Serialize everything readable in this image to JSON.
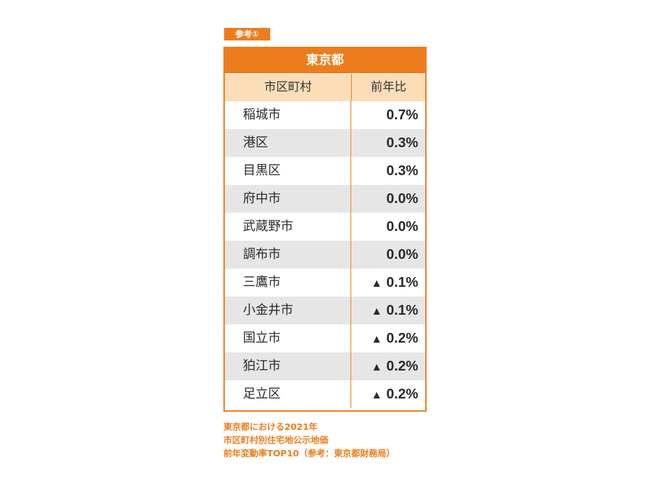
{
  "tag": "参考①",
  "table": {
    "title": "東京都",
    "col_name": "市区町村",
    "col_value": "前年比",
    "triangle": "▲",
    "rows": [
      {
        "name": "稲城市",
        "value": "0.7%",
        "negative": false
      },
      {
        "name": "港区",
        "value": "0.3%",
        "negative": false
      },
      {
        "name": "目黒区",
        "value": "0.3%",
        "negative": false
      },
      {
        "name": "府中市",
        "value": "0.0%",
        "negative": false
      },
      {
        "name": "武蔵野市",
        "value": "0.0%",
        "negative": false
      },
      {
        "name": "調布市",
        "value": "0.0%",
        "negative": false
      },
      {
        "name": "三鷹市",
        "value": "0.1%",
        "negative": true
      },
      {
        "name": "小金井市",
        "value": "0.1%",
        "negative": true
      },
      {
        "name": "国立市",
        "value": "0.2%",
        "negative": true
      },
      {
        "name": "狛江市",
        "value": "0.2%",
        "negative": true
      },
      {
        "name": "足立区",
        "value": "0.2%",
        "negative": true
      }
    ]
  },
  "caption": {
    "line1": "東京都における2021年",
    "line2": "市区町村別住宅地公示地価",
    "line3": "前年変動率TOP10（参考：東京都財務局）"
  },
  "colors": {
    "accent": "#ed7d1c",
    "header_bg": "#fbddb8",
    "stripe": "#e6e6e6"
  }
}
